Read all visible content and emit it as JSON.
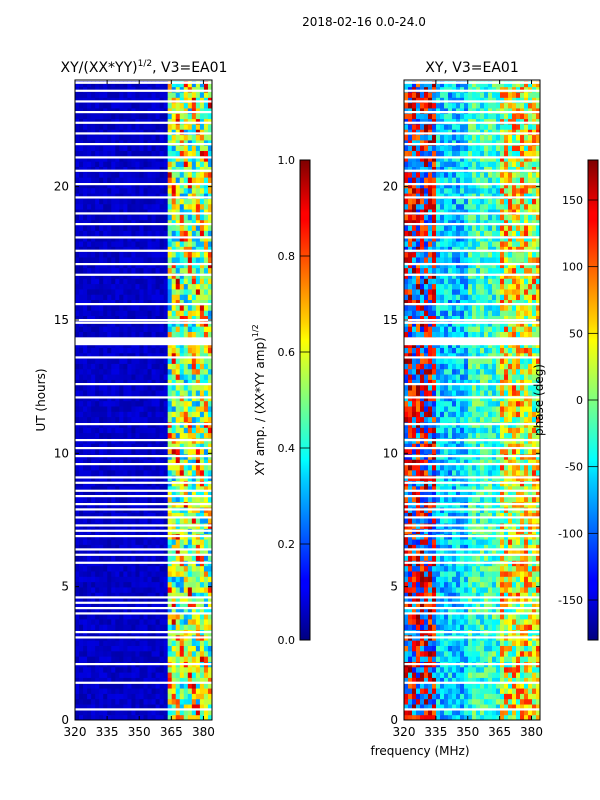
{
  "suptitle": "2018-02-16 0.0-24.0",
  "shared_xlabel": "frequency (MHz)",
  "chart_data": [
    {
      "type": "heatmap",
      "title_prefix": "XY/(XX*YY)",
      "title_exponent": "1/2",
      "title_suffix": ", V3=EA01",
      "xlabel": "",
      "ylabel": "UT (hours)",
      "xlim": [
        320,
        384
      ],
      "ylim": [
        0,
        24
      ],
      "xticks": [
        320,
        335,
        350,
        365,
        380
      ],
      "yticks": [
        0,
        5,
        10,
        15,
        20
      ],
      "colorbar": {
        "label_prefix": "XY amp. / (XX*YY amp)",
        "label_exponent": "1/2",
        "range": [
          0.0,
          1.0
        ],
        "ticks": [
          "0.0",
          "0.2",
          "0.4",
          "0.6",
          "0.8",
          "1.0"
        ],
        "tick_values": [
          0.0,
          0.2,
          0.4,
          0.6,
          0.8,
          1.0
        ]
      },
      "colormap": "jet",
      "description_values": {
        "low_band_amp": 0.03,
        "high_band_amp": 0.45,
        "high_band_start_mhz": 365
      }
    },
    {
      "type": "heatmap",
      "title": "XY, V3=EA01",
      "xlabel": "frequency (MHz)",
      "ylabel": "",
      "xlim": [
        320,
        384
      ],
      "ylim": [
        0,
        24
      ],
      "xticks": [
        320,
        335,
        350,
        365,
        380
      ],
      "yticks": [
        0,
        5,
        10,
        15,
        20
      ],
      "colorbar": {
        "label": "phase (deg)",
        "range": [
          -180,
          180
        ],
        "ticks": [
          "-150",
          "-100",
          "-50",
          "0",
          "50",
          "100",
          "150"
        ],
        "tick_values": [
          -150,
          -100,
          -50,
          0,
          50,
          100,
          150
        ]
      },
      "colormap": "jet"
    }
  ],
  "flagged_time_gaps_hours": [
    0.4,
    1.4,
    2.1,
    3.1,
    3.3,
    4.0,
    4.2,
    4.4,
    4.6,
    5.9,
    6.2,
    6.4,
    6.9,
    7.1,
    7.3,
    7.6,
    7.9,
    8.1,
    8.4,
    8.6,
    8.9,
    9.1,
    9.6,
    9.9,
    10.2,
    10.5,
    11.1,
    12.1,
    12.6,
    13.6,
    14.1,
    14.2,
    14.9,
    15.0,
    15.6,
    16.7,
    17.1,
    17.6,
    18.1,
    18.6,
    19.0,
    19.6,
    20.1,
    20.6,
    21.1,
    21.6,
    22.0,
    22.4,
    22.8,
    23.2,
    23.6,
    23.9
  ]
}
